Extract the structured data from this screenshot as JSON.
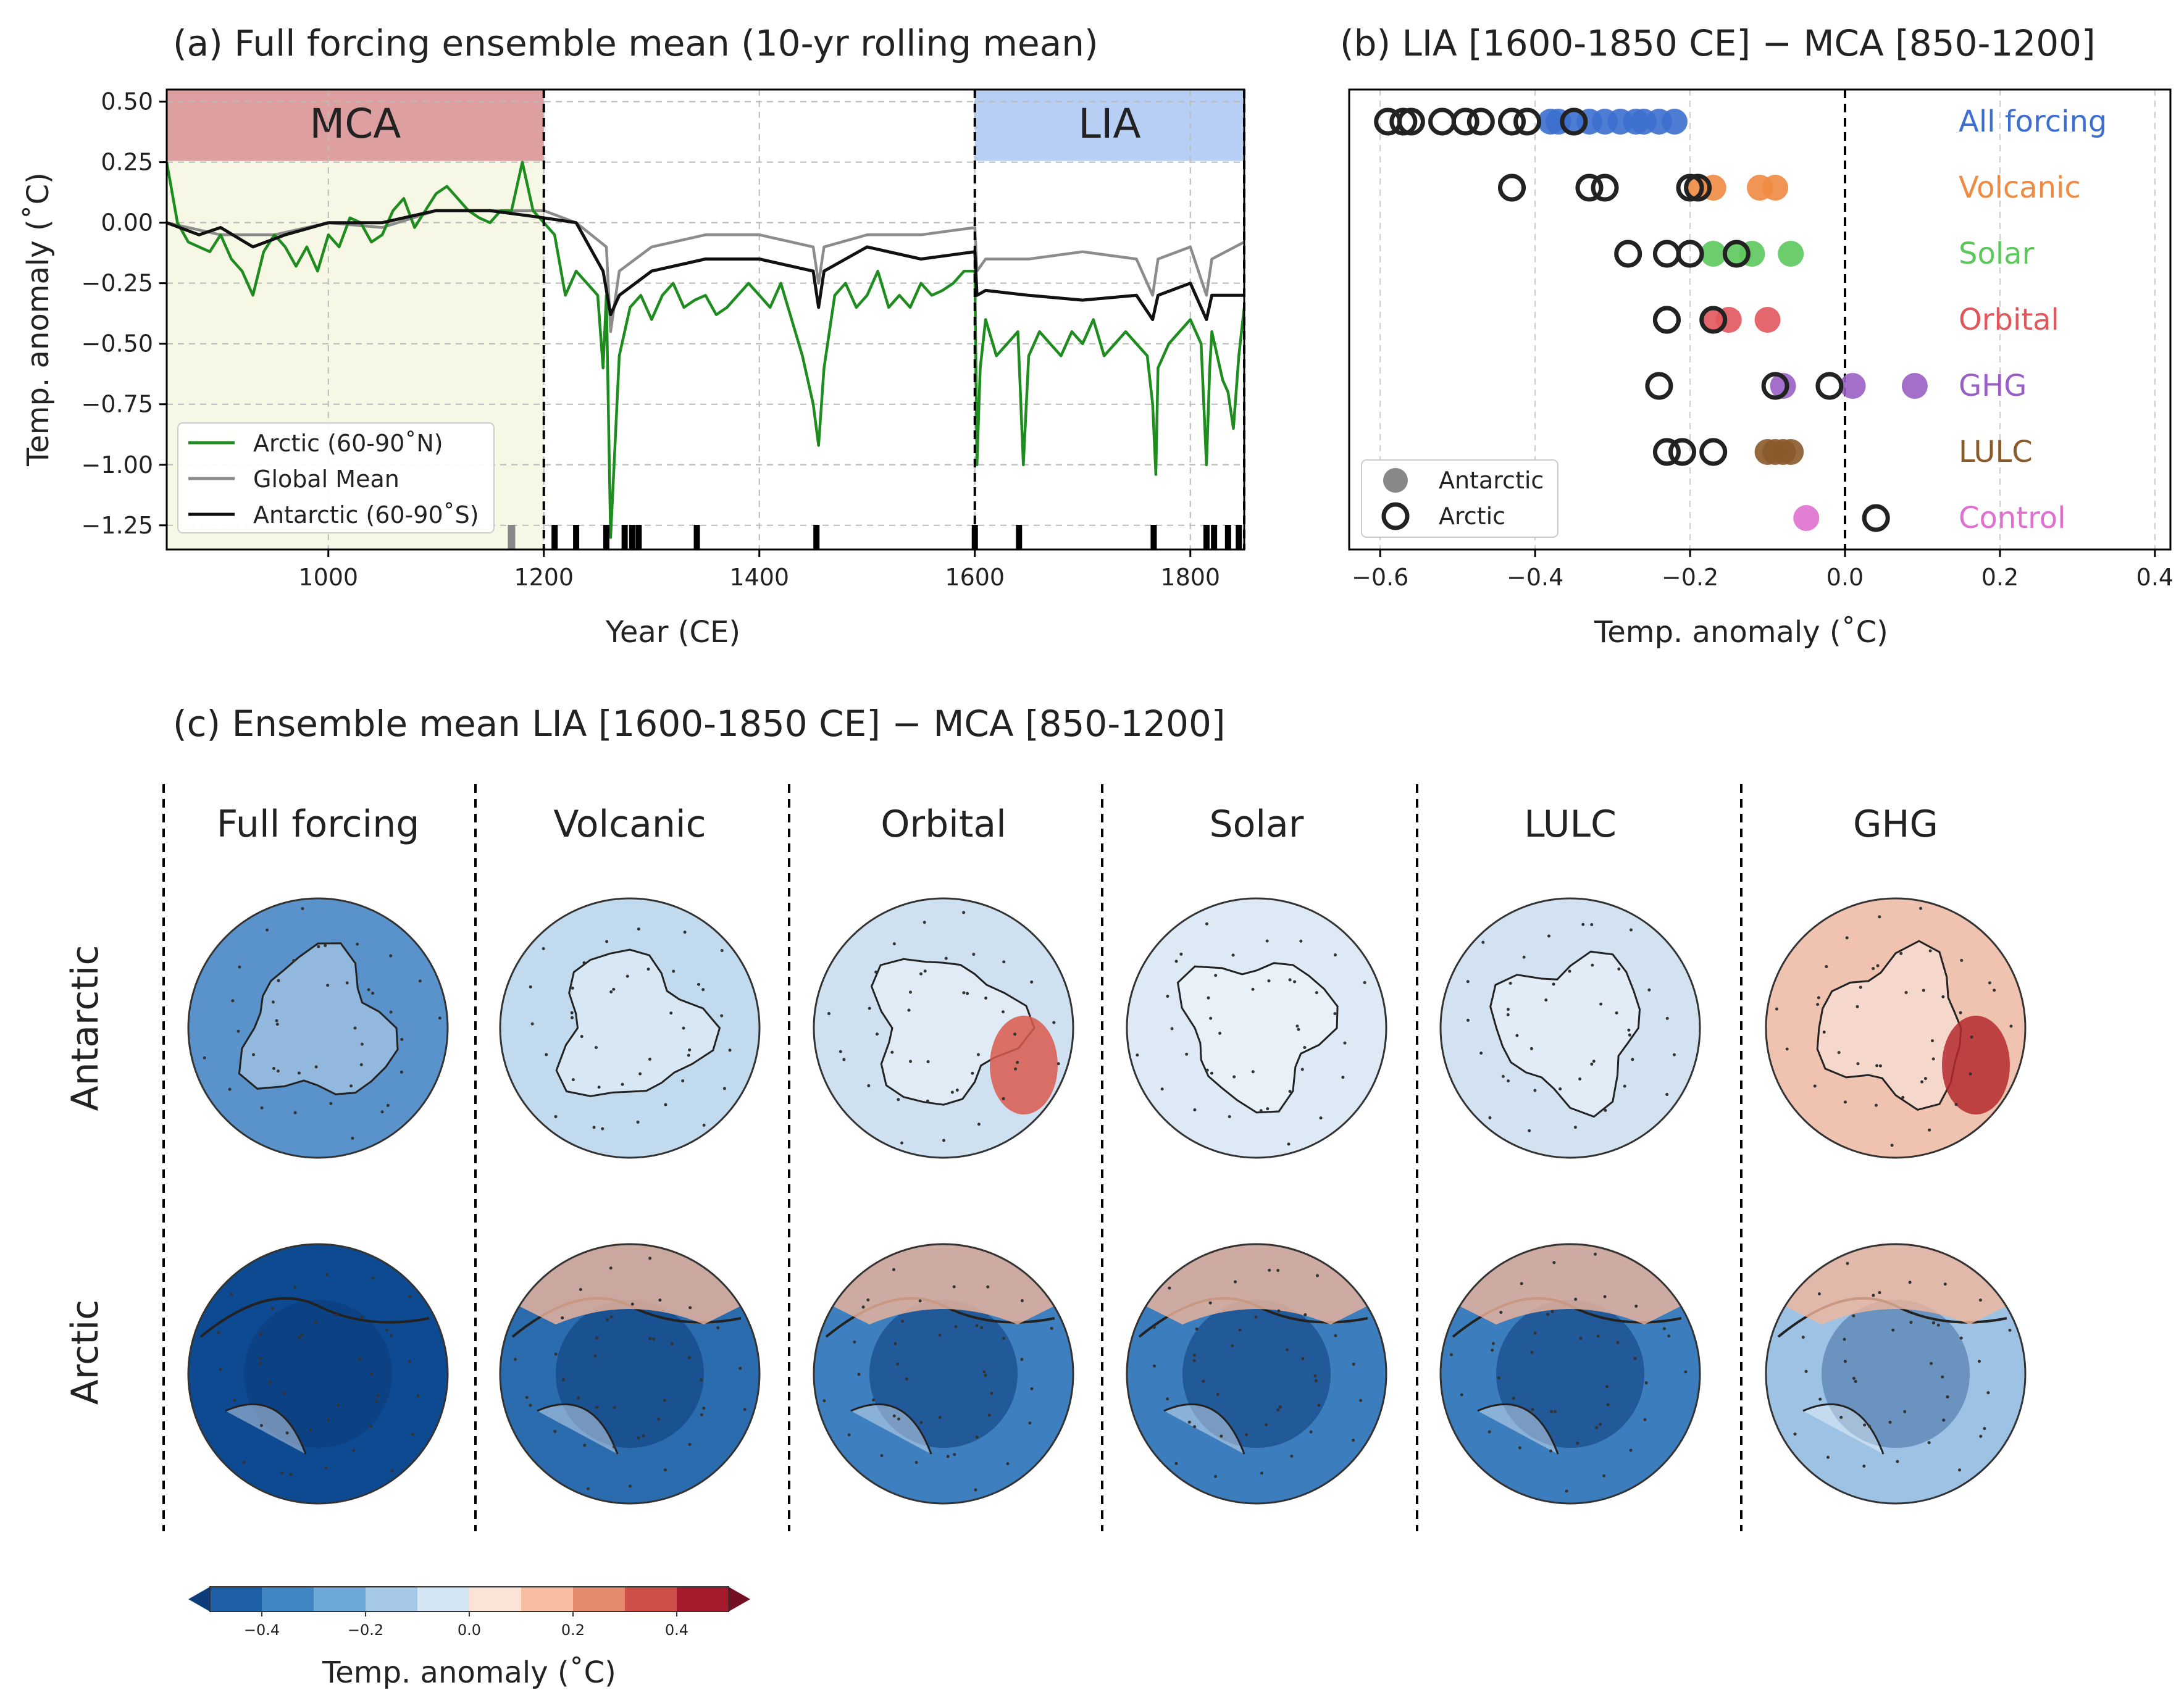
{
  "chart_data": [
    {
      "id": "a",
      "type": "line",
      "title": "(a) Full forcing ensemble mean (10-yr rolling mean)",
      "xlabel": "Year (CE)",
      "ylabel": "Temp. anomaly (˚C)",
      "xlim": [
        850,
        1850
      ],
      "ylim": [
        -1.35,
        0.55
      ],
      "xticks": [
        1000,
        1200,
        1400,
        1600,
        1800
      ],
      "xtick_labels": [
        "1000",
        "1200",
        "1400",
        "1600",
        "1800"
      ],
      "yticks": [
        0.5,
        0.25,
        0.0,
        -0.25,
        -0.5,
        -0.75,
        -1.0,
        -1.25
      ],
      "ytick_labels": [
        "0.50",
        "0.25",
        "0.00",
        "−0.25",
        "−0.50",
        "−0.75",
        "−1.00",
        "−1.25"
      ],
      "periods": [
        {
          "label": "MCA",
          "start": 850,
          "end": 1200,
          "color": "#dd9f9f"
        },
        {
          "label": "LIA",
          "start": 1600,
          "end": 1850,
          "color": "#b7cff5"
        }
      ],
      "legend": [
        "Arctic (60-90˚N)",
        "Global Mean",
        "Antarctic (60-90˚S)"
      ],
      "series": [
        {
          "name": "Arctic (60-90˚N)",
          "color": "#1e8c1e",
          "x": [
            850,
            860,
            870,
            880,
            890,
            900,
            910,
            920,
            930,
            940,
            950,
            960,
            970,
            980,
            990,
            1000,
            1010,
            1020,
            1030,
            1040,
            1050,
            1060,
            1070,
            1080,
            1090,
            1100,
            1110,
            1120,
            1130,
            1140,
            1150,
            1160,
            1170,
            1180,
            1190,
            1200,
            1210,
            1220,
            1230,
            1240,
            1250,
            1255,
            1258,
            1262,
            1270,
            1280,
            1290,
            1300,
            1310,
            1320,
            1330,
            1340,
            1350,
            1360,
            1370,
            1380,
            1390,
            1400,
            1410,
            1420,
            1430,
            1440,
            1450,
            1455,
            1460,
            1470,
            1480,
            1490,
            1500,
            1510,
            1520,
            1530,
            1540,
            1550,
            1560,
            1570,
            1580,
            1590,
            1600,
            1602,
            1605,
            1610,
            1620,
            1630,
            1640,
            1645,
            1650,
            1660,
            1670,
            1680,
            1690,
            1700,
            1710,
            1720,
            1730,
            1740,
            1750,
            1760,
            1765,
            1768,
            1770,
            1780,
            1790,
            1800,
            1810,
            1815,
            1818,
            1820,
            1830,
            1835,
            1840,
            1845,
            1850
          ],
          "y": [
            0.25,
            0.0,
            -0.08,
            -0.1,
            -0.12,
            -0.05,
            -0.15,
            -0.2,
            -0.3,
            -0.12,
            -0.05,
            -0.1,
            -0.18,
            -0.1,
            -0.2,
            -0.05,
            -0.1,
            0.02,
            0.0,
            -0.08,
            -0.05,
            0.05,
            0.1,
            -0.02,
            0.05,
            0.12,
            0.15,
            0.1,
            0.05,
            0.02,
            0.0,
            0.05,
            0.05,
            0.25,
            0.05,
            0.0,
            -0.05,
            -0.3,
            -0.2,
            -0.25,
            -0.3,
            -0.6,
            -0.3,
            -1.3,
            -0.55,
            -0.35,
            -0.3,
            -0.4,
            -0.3,
            -0.25,
            -0.35,
            -0.32,
            -0.3,
            -0.38,
            -0.35,
            -0.3,
            -0.25,
            -0.3,
            -0.35,
            -0.25,
            -0.4,
            -0.55,
            -0.75,
            -0.92,
            -0.6,
            -0.3,
            -0.25,
            -0.35,
            -0.3,
            -0.2,
            -0.35,
            -0.3,
            -0.35,
            -0.25,
            -0.3,
            -0.28,
            -0.25,
            -0.2,
            -0.2,
            -1.0,
            -0.6,
            -0.4,
            -0.55,
            -0.5,
            -0.45,
            -1.0,
            -0.55,
            -0.45,
            -0.5,
            -0.55,
            -0.45,
            -0.5,
            -0.4,
            -0.55,
            -0.5,
            -0.45,
            -0.5,
            -0.55,
            -0.75,
            -1.04,
            -0.6,
            -0.5,
            -0.45,
            -0.4,
            -0.5,
            -1.0,
            -0.6,
            -0.45,
            -0.65,
            -0.7,
            -0.85,
            -0.55,
            -0.35
          ]
        },
        {
          "name": "Global Mean",
          "color": "#8c8c8c",
          "x": [
            850,
            900,
            950,
            1000,
            1050,
            1100,
            1150,
            1200,
            1230,
            1258,
            1262,
            1270,
            1300,
            1350,
            1400,
            1450,
            1455,
            1460,
            1500,
            1550,
            1600,
            1602,
            1610,
            1650,
            1700,
            1750,
            1765,
            1770,
            1800,
            1815,
            1820,
            1850
          ],
          "y": [
            0.0,
            -0.05,
            -0.05,
            0.0,
            -0.02,
            0.05,
            0.05,
            0.05,
            0.0,
            -0.1,
            -0.45,
            -0.2,
            -0.1,
            -0.05,
            -0.05,
            -0.1,
            -0.25,
            -0.1,
            -0.05,
            -0.05,
            -0.02,
            -0.2,
            -0.15,
            -0.15,
            -0.12,
            -0.15,
            -0.3,
            -0.15,
            -0.1,
            -0.3,
            -0.15,
            -0.08
          ]
        },
        {
          "name": "Antarctic (60-90˚S)",
          "color": "#111111",
          "x": [
            850,
            880,
            900,
            930,
            960,
            1000,
            1050,
            1100,
            1150,
            1200,
            1230,
            1255,
            1262,
            1270,
            1300,
            1350,
            1400,
            1450,
            1455,
            1460,
            1500,
            1550,
            1600,
            1602,
            1610,
            1650,
            1700,
            1750,
            1765,
            1770,
            1800,
            1815,
            1820,
            1850
          ],
          "y": [
            0.0,
            -0.05,
            -0.02,
            -0.1,
            -0.05,
            0.0,
            0.0,
            0.05,
            0.05,
            0.02,
            0.0,
            -0.2,
            -0.38,
            -0.3,
            -0.2,
            -0.15,
            -0.15,
            -0.2,
            -0.35,
            -0.2,
            -0.1,
            -0.15,
            -0.12,
            -0.3,
            -0.28,
            -0.3,
            -0.32,
            -0.3,
            -0.4,
            -0.3,
            -0.25,
            -0.4,
            -0.3,
            -0.3
          ]
        }
      ],
      "volcanic_event_years": [
        1210,
        1230,
        1258,
        1275,
        1282,
        1288,
        1342,
        1453,
        1600,
        1641,
        1766,
        1815,
        1822,
        1835,
        1845
      ],
      "gray_event_years": [
        1170
      ]
    },
    {
      "id": "b",
      "type": "scatter",
      "title": "(b) LIA [1600-1850 CE] − MCA [850-1200]",
      "xlabel": "Temp. anomaly (˚C)",
      "xlim": [
        -0.64,
        0.42
      ],
      "xticks": [
        -0.6,
        -0.4,
        -0.2,
        0.0,
        0.2,
        0.4
      ],
      "xtick_labels": [
        "−0.6",
        "−0.4",
        "−0.2",
        "0.0",
        "0.2",
        "0.4"
      ],
      "legend": [
        "Antarctic",
        "Arctic"
      ],
      "categories": [
        {
          "name": "All forcing",
          "color": "#3c6fcf",
          "antarctic": [
            -0.22,
            -0.24,
            -0.26,
            -0.27,
            -0.29,
            -0.31,
            -0.33,
            -0.35,
            -0.37,
            -0.38
          ],
          "arctic": [
            -0.35,
            -0.41,
            -0.43,
            -0.47,
            -0.49,
            -0.52,
            -0.56,
            -0.57,
            -0.59
          ]
        },
        {
          "name": "Volcanic",
          "color": "#f08a41",
          "antarctic": [
            -0.09,
            -0.11,
            -0.17,
            -0.19
          ],
          "arctic": [
            -0.2,
            -0.19,
            -0.31,
            -0.33,
            -0.43
          ]
        },
        {
          "name": "Solar",
          "color": "#5cc85c",
          "antarctic": [
            -0.07,
            -0.12,
            -0.14,
            -0.17
          ],
          "arctic": [
            -0.14,
            -0.2,
            -0.23,
            -0.28
          ]
        },
        {
          "name": "Orbital",
          "color": "#e0575c",
          "antarctic": [
            -0.1,
            -0.15,
            -0.17
          ],
          "arctic": [
            -0.17,
            -0.23,
            -0.23
          ]
        },
        {
          "name": "GHG",
          "color": "#9a5fc4",
          "antarctic": [
            0.09,
            0.01,
            -0.08
          ],
          "arctic": [
            -0.02,
            -0.09,
            -0.24
          ]
        },
        {
          "name": "LULC",
          "color": "#8b5a2b",
          "antarctic": [
            -0.07,
            -0.08,
            -0.09,
            -0.1
          ],
          "arctic": [
            -0.17,
            -0.21,
            -0.23
          ]
        },
        {
          "name": "Control",
          "color": "#e070d0",
          "antarctic": [
            -0.05
          ],
          "arctic": [
            0.04
          ]
        }
      ]
    },
    {
      "id": "c",
      "type": "heatmap",
      "title": "(c) Ensemble mean LIA [1600-1850 CE] − MCA [850-1200]",
      "columns": [
        "Full forcing",
        "Volcanic",
        "Orbital",
        "Solar",
        "LULC",
        "GHG"
      ],
      "rows": [
        "Antarctic",
        "Arctic"
      ],
      "colorbar": {
        "label": "Temp. anomaly (˚C)",
        "range": [
          -0.5,
          0.5
        ],
        "tick_values": [
          -0.4,
          -0.2,
          0.0,
          0.2,
          0.4
        ],
        "tick_labels": [
          "−0.4",
          "−0.2",
          "0.0",
          "0.2",
          "0.4"
        ],
        "colors": [
          "#1e5fa8",
          "#3f86c3",
          "#6ea8d6",
          "#a5c9e6",
          "#d4e6f3",
          "#fbe4d6",
          "#f6bda0",
          "#e48b6e",
          "#cd4f47",
          "#a41c2e"
        ],
        "extend_low": "#0c3d7a",
        "extend_high": "#730f22"
      },
      "panels": [
        [
          "#5a93cc",
          "#c2daee",
          "#cfe0f0",
          "#ddeaf5",
          "#d2e2f1",
          "#f0c3b0"
        ],
        [
          "#0d4a91",
          "#2a6cae",
          "#3d7fbf",
          "#3c7dbd",
          "#3c7dbd",
          "#9dc2e3"
        ]
      ]
    }
  ]
}
